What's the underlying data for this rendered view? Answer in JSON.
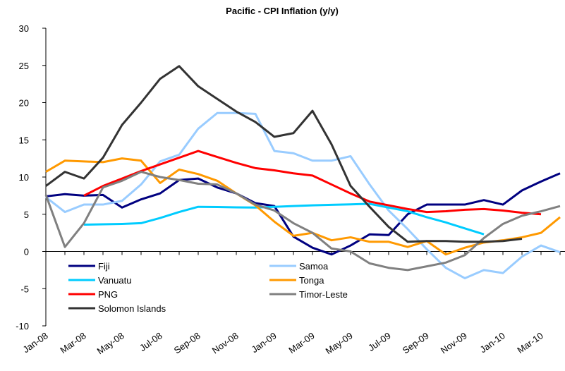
{
  "chart_data": {
    "type": "line",
    "title": "Pacific - CPI Inflation (y/y)",
    "categories": [
      "Jan-08",
      null,
      "Mar-08",
      null,
      "May-08",
      null,
      "Jul-08",
      null,
      "Sep-08",
      null,
      "Nov-08",
      null,
      "Jan-09",
      null,
      "Mar-09",
      null,
      "May-09",
      null,
      "Jul-09",
      null,
      "Sep-09",
      null,
      "Nov-09",
      null,
      "Jan-10",
      null,
      "Mar-10",
      null
    ],
    "ylim": [
      -10,
      30
    ],
    "yticks": [
      -10,
      -5,
      0,
      5,
      10,
      15,
      20,
      25,
      30
    ],
    "grid": false,
    "legend": "lower left",
    "series": [
      {
        "name": "Fiji",
        "color": "#000080",
        "values": [
          7.4,
          7.7,
          7.5,
          7.6,
          5.9,
          7.0,
          7.8,
          9.6,
          9.8,
          8.6,
          7.8,
          6.5,
          6.1,
          2.0,
          0.5,
          -0.4,
          0.8,
          2.3,
          2.2,
          5.0,
          6.3,
          6.3,
          6.3,
          6.9,
          6.3,
          8.2,
          9.4,
          10.5
        ]
      },
      {
        "name": "Samoa",
        "color": "#99ccff",
        "values": [
          7.3,
          5.3,
          6.3,
          6.3,
          6.8,
          9.0,
          12.1,
          13.0,
          16.5,
          18.6,
          18.6,
          18.5,
          13.5,
          13.2,
          12.2,
          12.2,
          12.8,
          9.0,
          5.5,
          3.0,
          0.3,
          -2.2,
          -3.6,
          -2.5,
          -2.9,
          -0.7,
          0.8,
          -0.1
        ]
      },
      {
        "name": "Vanuatu",
        "color": "#00ccff",
        "values": [
          null,
          null,
          3.6,
          3.65,
          3.7,
          3.8,
          4.5,
          5.3,
          6.0,
          5.97,
          5.93,
          5.9,
          6.0,
          6.1,
          6.2,
          6.27,
          6.33,
          6.4,
          5.9,
          5.4,
          4.6,
          3.9,
          3.1,
          2.3,
          null,
          null,
          null,
          null
        ]
      },
      {
        "name": "Tonga",
        "color": "#ff9900",
        "values": [
          10.7,
          12.2,
          12.1,
          12.0,
          12.5,
          12.2,
          9.2,
          11.0,
          10.4,
          9.5,
          7.8,
          6.2,
          4.0,
          2.1,
          2.5,
          1.5,
          1.9,
          1.3,
          1.3,
          0.6,
          1.4,
          -0.4,
          0.5,
          1.2,
          1.5,
          1.9,
          2.5,
          4.6
        ]
      },
      {
        "name": "PNG",
        "color": "#ff0000",
        "values": [
          null,
          null,
          7.5,
          8.8,
          9.8,
          10.8,
          11.7,
          12.6,
          13.5,
          12.7,
          11.9,
          11.2,
          10.9,
          10.5,
          10.2,
          9.0,
          7.8,
          6.7,
          6.2,
          5.7,
          5.3,
          5.4,
          5.6,
          5.7,
          5.5,
          5.2,
          5.0,
          null
        ]
      },
      {
        "name": "Timor-Leste",
        "color": "#808080",
        "values": [
          7.6,
          0.6,
          3.8,
          8.6,
          9.5,
          10.7,
          10.0,
          9.6,
          9.1,
          9.0,
          7.8,
          6.3,
          5.5,
          3.8,
          2.5,
          0.4,
          0.0,
          -1.6,
          -2.2,
          -2.5,
          -2.0,
          -1.5,
          -0.5,
          1.8,
          3.7,
          4.8,
          5.4,
          6.1
        ]
      },
      {
        "name": "Solomon Islands",
        "color": "#333333",
        "values": [
          8.8,
          10.7,
          9.8,
          12.6,
          17.0,
          20.0,
          23.2,
          24.9,
          22.2,
          20.5,
          18.8,
          17.4,
          15.4,
          15.9,
          18.9,
          14.4,
          8.8,
          6.0,
          3.3,
          1.3,
          1.4,
          1.4,
          1.3,
          1.3,
          1.4,
          1.7,
          null,
          null
        ]
      }
    ]
  }
}
